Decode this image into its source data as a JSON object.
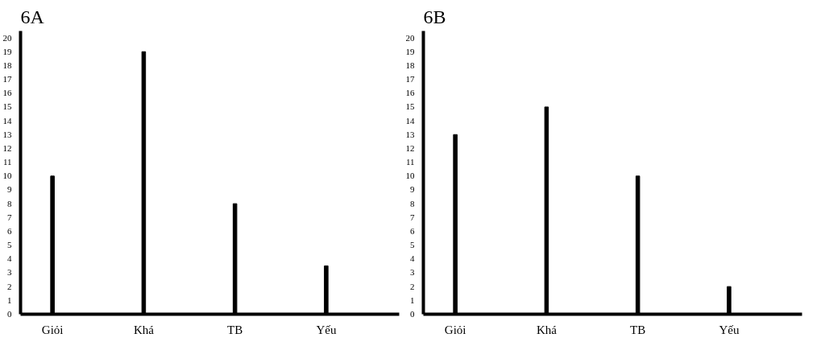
{
  "chart_data": [
    {
      "type": "bar",
      "title": "6A",
      "categories": [
        "Giỏi",
        "Khá",
        "TB",
        "Yếu"
      ],
      "values": [
        10,
        19,
        8,
        3.5
      ],
      "color": "#000000",
      "ylim": [
        0,
        20.5
      ],
      "yticks": [
        0,
        1,
        2,
        3,
        4,
        5,
        6,
        7,
        8,
        9,
        10,
        11,
        12,
        13,
        14,
        15,
        16,
        17,
        18,
        19,
        20
      ],
      "grid": false
    },
    {
      "type": "bar",
      "title": "6B",
      "categories": [
        "Giỏi",
        "Khá",
        "TB",
        "Yếu"
      ],
      "values": [
        13,
        15,
        10,
        2
      ],
      "color": "#000000",
      "ylim": [
        0,
        20.5
      ],
      "yticks": [
        0,
        1,
        2,
        3,
        4,
        5,
        6,
        7,
        8,
        9,
        10,
        11,
        12,
        13,
        14,
        15,
        16,
        17,
        18,
        19,
        20
      ],
      "grid": false
    }
  ]
}
